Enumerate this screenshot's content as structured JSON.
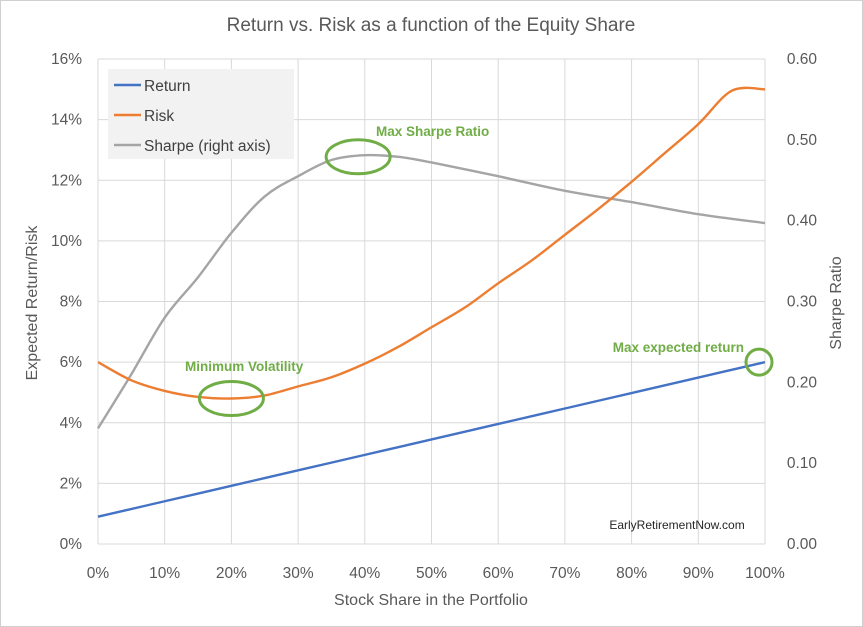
{
  "chart_data": {
    "type": "line",
    "title": "Return vs. Risk as a function of the Equity Share",
    "xlabel": "Stock Share in the Portfolio",
    "ylabel": "Expected Return/Risk",
    "y2label": "Sharpe Ratio",
    "xlim": [
      0,
      100
    ],
    "ylim": [
      0,
      16
    ],
    "y2lim": [
      0,
      0.6
    ],
    "x_ticks": [
      0,
      10,
      20,
      30,
      40,
      50,
      60,
      70,
      80,
      90,
      100
    ],
    "x_tick_labels": [
      "0%",
      "10%",
      "20%",
      "30%",
      "40%",
      "50%",
      "60%",
      "70%",
      "80%",
      "90%",
      "100%"
    ],
    "y_ticks": [
      0,
      2,
      4,
      6,
      8,
      10,
      12,
      14,
      16
    ],
    "y_tick_labels": [
      "0%",
      "2%",
      "4%",
      "6%",
      "8%",
      "10%",
      "12%",
      "14%",
      "16%"
    ],
    "y2_ticks": [
      0,
      0.1,
      0.2,
      0.3,
      0.4,
      0.5,
      0.6
    ],
    "y2_tick_labels": [
      "0.00",
      "0.10",
      "0.20",
      "0.30",
      "0.40",
      "0.50",
      "0.60"
    ],
    "grid": "horizontal",
    "legend_position": "top-left",
    "series": [
      {
        "name": "Return",
        "color": "#4472c4",
        "axis": "left",
        "x": [
          0,
          10,
          20,
          30,
          40,
          50,
          60,
          70,
          80,
          90,
          100
        ],
        "y": [
          0.9,
          1.41,
          1.92,
          2.43,
          2.94,
          3.45,
          3.96,
          4.47,
          4.98,
          5.49,
          6.0
        ]
      },
      {
        "name": "Risk",
        "color": "#ed7d31",
        "axis": "left",
        "x": [
          0,
          5,
          10,
          15,
          20,
          25,
          30,
          35,
          40,
          45,
          50,
          55,
          60,
          65,
          70,
          75,
          80,
          85,
          90,
          95,
          100
        ],
        "y": [
          6.0,
          5.4,
          5.05,
          4.85,
          4.8,
          4.9,
          5.2,
          5.5,
          5.95,
          6.5,
          7.15,
          7.8,
          8.6,
          9.35,
          10.2,
          11.05,
          11.95,
          12.9,
          13.85,
          14.95,
          15.0
        ]
      },
      {
        "name": "Sharpe (right axis)",
        "color": "#a5a5a5",
        "axis": "right",
        "x": [
          0,
          5,
          10,
          15,
          20,
          25,
          30,
          35,
          40,
          45,
          50,
          60,
          70,
          80,
          90,
          100
        ],
        "y": [
          0.143,
          0.21,
          0.28,
          0.33,
          0.385,
          0.43,
          0.455,
          0.475,
          0.481,
          0.479,
          0.472,
          0.455,
          0.437,
          0.423,
          0.408,
          0.397
        ]
      }
    ],
    "annotations": [
      {
        "text": "Max Sharpe Ratio",
        "x": 39,
        "y_axis": "right",
        "y": 0.479
      },
      {
        "text": "Minimum Volatility",
        "x": 20,
        "y_axis": "left",
        "y": 4.8
      },
      {
        "text": "Max expected return",
        "x": 100,
        "y_axis": "left",
        "y": 6.0
      }
    ],
    "annotation_color": "#70ad47",
    "credit": "EarlyRetirementNow.com"
  }
}
